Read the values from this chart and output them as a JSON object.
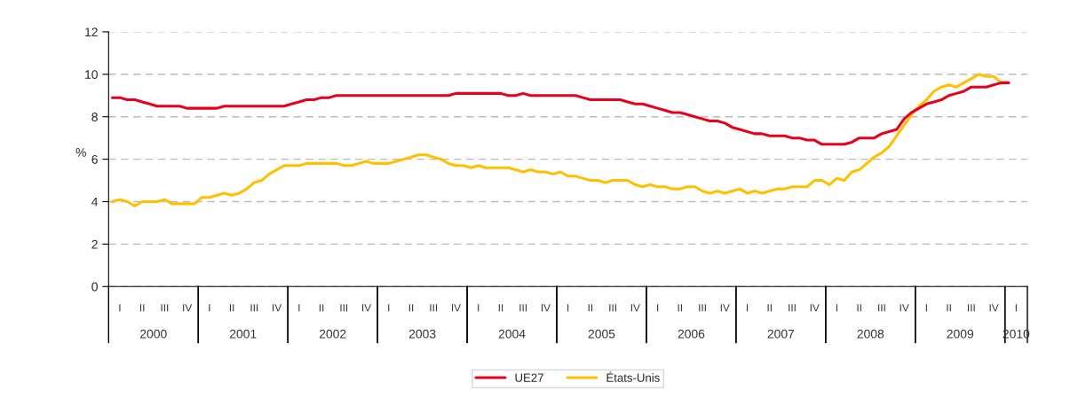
{
  "chart_data": {
    "type": "line",
    "ylabel": "%",
    "ylim": [
      0,
      12
    ],
    "yticks": [
      0,
      2,
      4,
      6,
      8,
      10,
      12
    ],
    "categories": [
      null,
      "I",
      null,
      null,
      "II",
      null,
      null,
      "III",
      null,
      null,
      "IV",
      null,
      null,
      "I",
      null,
      null,
      "II",
      null,
      null,
      "III",
      null,
      null,
      "IV",
      null,
      null,
      "I",
      null,
      null,
      "II",
      null,
      null,
      "III",
      null,
      null,
      "IV",
      null,
      null,
      "I",
      null,
      null,
      "II",
      null,
      null,
      "III",
      null,
      null,
      "IV",
      null,
      null,
      "I",
      null,
      null,
      "II",
      null,
      null,
      "III",
      null,
      null,
      "IV",
      null,
      null,
      "I",
      null,
      null,
      "II",
      null,
      null,
      "III",
      null,
      null,
      "IV",
      null,
      null,
      "I",
      null,
      null,
      "II",
      null,
      null,
      "III",
      null,
      null,
      "IV",
      null,
      null,
      "I",
      null,
      null,
      "II",
      null,
      null,
      "III",
      null,
      null,
      "IV",
      null,
      null,
      "I",
      null,
      null,
      "II",
      null,
      null,
      "III",
      null,
      null,
      "IV",
      null,
      null,
      "I",
      null,
      null,
      "II",
      null,
      null,
      "III",
      null,
      null,
      "IV",
      null,
      null,
      "I",
      null
    ],
    "annotations": [
      "2000",
      "2001",
      "2002",
      "2003",
      "2004",
      "2005",
      "2006",
      "2007",
      "2008",
      "2009",
      "2010"
    ],
    "grid": "y",
    "legend": "bottom",
    "line_style": "solid",
    "marker": "none",
    "series": [
      {
        "name": "UE27",
        "color": "#e8001c",
        "values": [
          8.9,
          8.9,
          8.8,
          8.8,
          8.7,
          8.6,
          8.5,
          8.5,
          8.5,
          8.5,
          8.4,
          8.4,
          8.4,
          8.4,
          8.4,
          8.5,
          8.5,
          8.5,
          8.5,
          8.5,
          8.5,
          8.5,
          8.5,
          8.5,
          8.6,
          8.7,
          8.8,
          8.8,
          8.9,
          8.9,
          9.0,
          9.0,
          9.0,
          9.0,
          9.0,
          9.0,
          9.0,
          9.0,
          9.0,
          9.0,
          9.0,
          9.0,
          9.0,
          9.0,
          9.0,
          9.0,
          9.1,
          9.1,
          9.1,
          9.1,
          9.1,
          9.1,
          9.1,
          9.0,
          9.0,
          9.1,
          9.0,
          9.0,
          9.0,
          9.0,
          9.0,
          9.0,
          9.0,
          8.9,
          8.8,
          8.8,
          8.8,
          8.8,
          8.8,
          8.7,
          8.6,
          8.6,
          8.5,
          8.4,
          8.3,
          8.2,
          8.2,
          8.1,
          8.0,
          7.9,
          7.8,
          7.8,
          7.7,
          7.5,
          7.4,
          7.3,
          7.2,
          7.2,
          7.1,
          7.1,
          7.1,
          7.0,
          7.0,
          6.9,
          6.9,
          6.7,
          6.7,
          6.7,
          6.7,
          6.8,
          7.0,
          7.0,
          7.0,
          7.2,
          7.3,
          7.4,
          7.9,
          8.2,
          8.4,
          8.6,
          8.7,
          8.8,
          9.0,
          9.1,
          9.2,
          9.4,
          9.4,
          9.4,
          9.5,
          9.6,
          9.6,
          null,
          null
        ]
      },
      {
        "name": "États-Unis",
        "color": "#ffc000",
        "values": [
          4.0,
          4.1,
          4.0,
          3.8,
          4.0,
          4.0,
          4.0,
          4.1,
          3.9,
          3.9,
          3.9,
          3.9,
          4.2,
          4.2,
          4.3,
          4.4,
          4.3,
          4.4,
          4.6,
          4.9,
          5.0,
          5.3,
          5.5,
          5.7,
          5.7,
          5.7,
          5.8,
          5.8,
          5.8,
          5.8,
          5.8,
          5.7,
          5.7,
          5.8,
          5.9,
          5.8,
          5.8,
          5.8,
          5.9,
          6.0,
          6.1,
          6.2,
          6.2,
          6.1,
          6.0,
          5.8,
          5.7,
          5.7,
          5.6,
          5.7,
          5.6,
          5.6,
          5.6,
          5.6,
          5.5,
          5.4,
          5.5,
          5.4,
          5.4,
          5.3,
          5.4,
          5.2,
          5.2,
          5.1,
          5.0,
          5.0,
          4.9,
          5.0,
          5.0,
          5.0,
          4.8,
          4.7,
          4.8,
          4.7,
          4.7,
          4.6,
          4.6,
          4.7,
          4.7,
          4.5,
          4.4,
          4.5,
          4.4,
          4.5,
          4.6,
          4.4,
          4.5,
          4.4,
          4.5,
          4.6,
          4.6,
          4.7,
          4.7,
          4.7,
          5.0,
          5.0,
          4.8,
          5.1,
          5.0,
          5.4,
          5.5,
          5.8,
          6.1,
          6.3,
          6.6,
          7.1,
          7.6,
          8.1,
          8.5,
          8.8,
          9.2,
          9.4,
          9.5,
          9.4,
          9.6,
          9.8,
          10.0,
          9.9,
          9.9,
          9.6,
          9.6,
          null,
          null
        ]
      }
    ]
  }
}
